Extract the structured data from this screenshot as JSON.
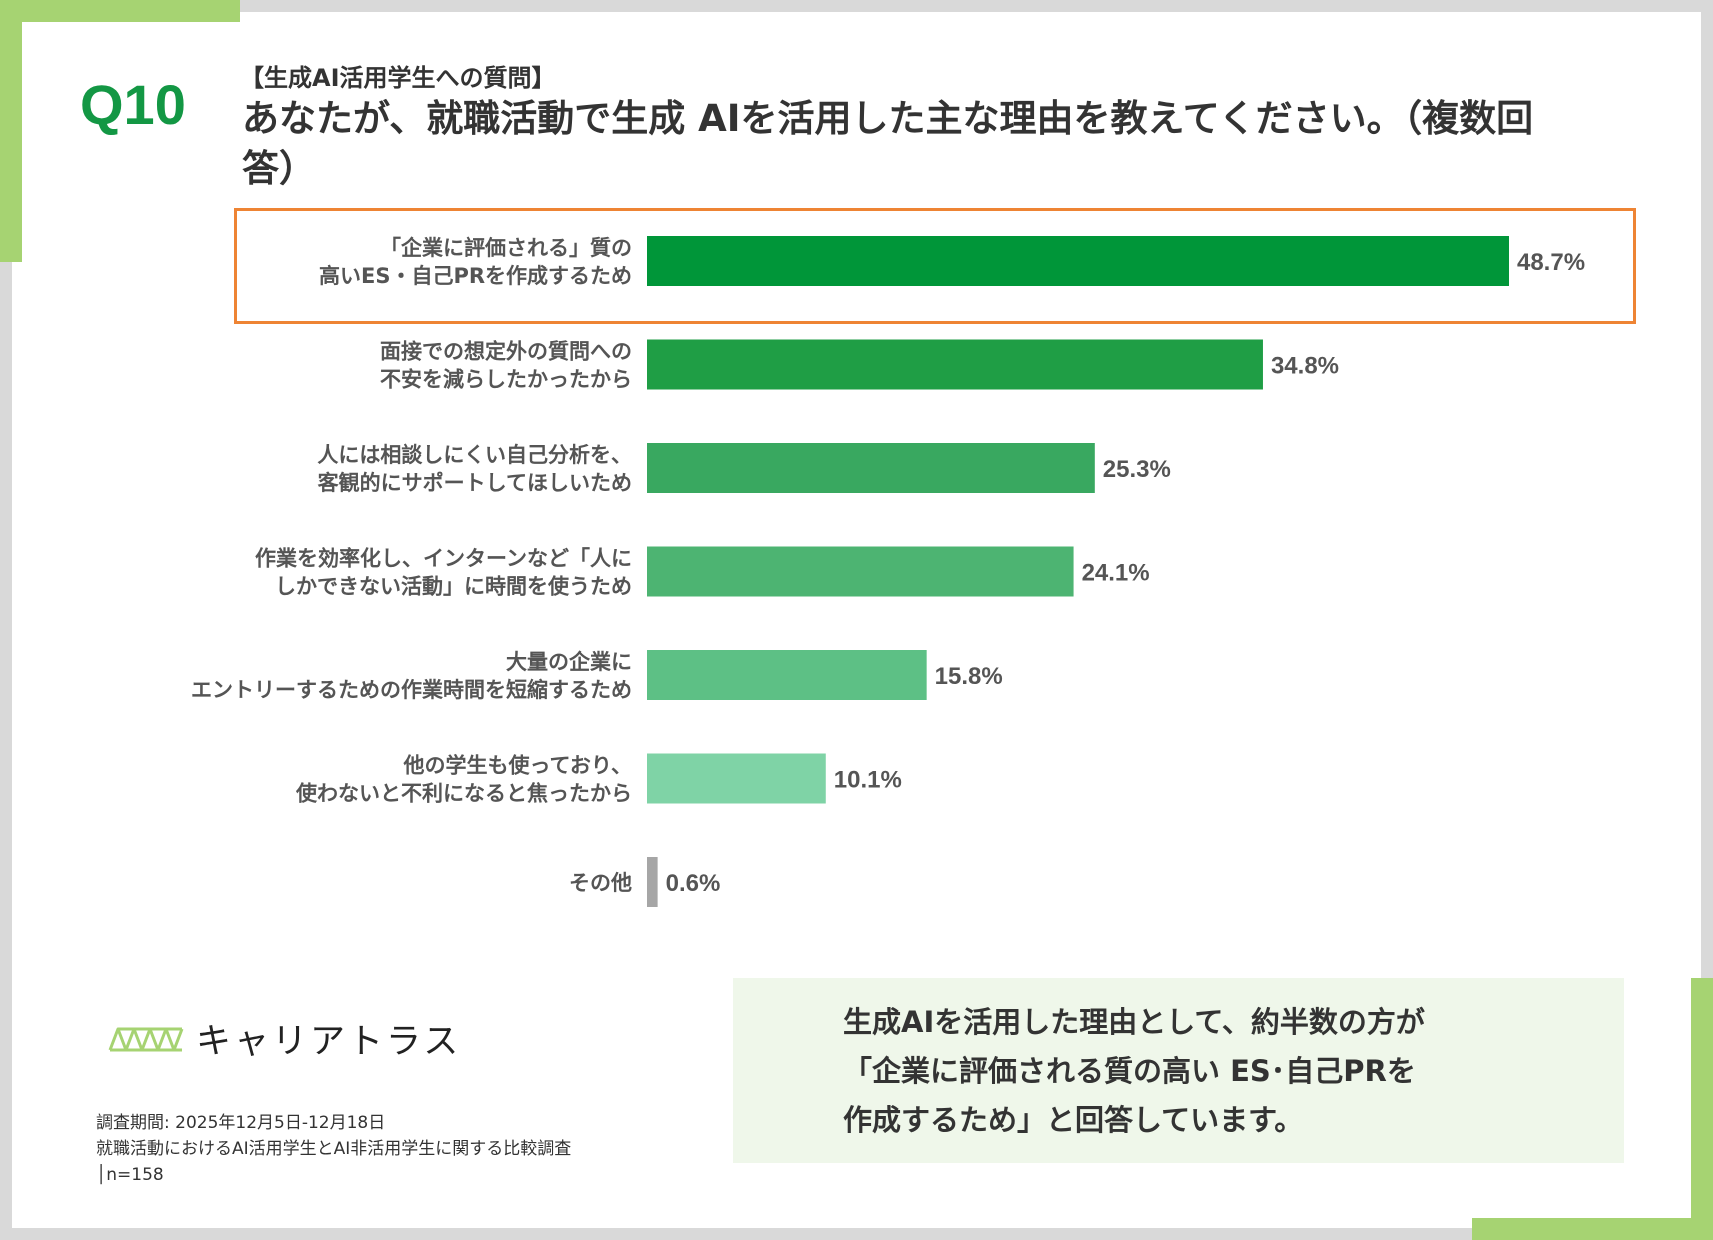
{
  "header": {
    "question_no": "Q10",
    "subtitle": "【生成AI活用学生への質問】",
    "title": "あなたが、就職活動で生成 AIを活用した主な理由を教えてください。（複数回答）"
  },
  "chart_data": {
    "type": "bar",
    "orientation": "horizontal",
    "unit": "%",
    "highlighted_index": 0,
    "categories": [
      [
        "「企業に評価される」質の",
        "高いES・自己PRを作成するため"
      ],
      [
        "面接での想定外の質問への",
        "不安を減らしたかったから"
      ],
      [
        "人には相談しにくい自己分析を、",
        "客観的にサポートしてほしいため"
      ],
      [
        "作業を効率化し、インターンなど「人に",
        "しかできない活動」に時間を使うため"
      ],
      [
        "大量の企業に",
        "エントリーするための作業時間を短縮するため"
      ],
      [
        "他の学生も使っており、",
        "使わないと不利になると焦ったから"
      ],
      [
        "その他"
      ]
    ],
    "values": [
      48.7,
      34.8,
      25.3,
      24.1,
      15.8,
      10.1,
      0.6
    ],
    "value_labels": [
      "48.7%",
      "34.8%",
      "25.3%",
      "24.1%",
      "15.8%",
      "10.1%",
      "0.6%"
    ],
    "colors": [
      "#009639",
      "#1f9e45",
      "#39a860",
      "#4db472",
      "#5dc085",
      "#7fd3a6",
      "#a6a6a6"
    ],
    "highlight_color": "#ee8434"
  },
  "logo": {
    "name": "キャリアトラス",
    "color": "#a6d372"
  },
  "footnote": {
    "period": "調査期間: 2025年12月5日-12月18日",
    "survey": "就職活動におけるAI活用学生とAI非活用学生に関する比較調査",
    "sample": "│n=158"
  },
  "summary": {
    "line1": "生成AIを活用した理由として、約半数の方が",
    "line2": "「企業に評価される質の高い ES･自己PRを",
    "line3": "作成するため」と回答しています。"
  }
}
